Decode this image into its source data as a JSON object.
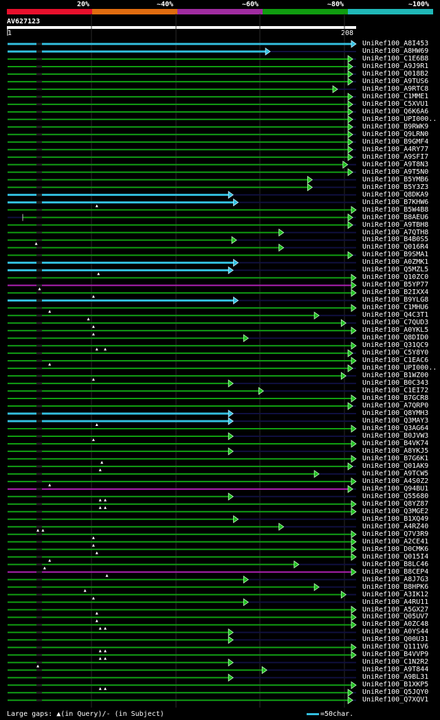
{
  "legend": {
    "labels": [
      "20%",
      "~40%",
      "~60%",
      "~80%",
      "~100%"
    ],
    "colors": [
      "#e8102c",
      "#e06c10",
      "#a02ca0",
      "#109c10",
      "#20b8b8"
    ]
  },
  "query": {
    "id": "AV627123",
    "start_label": "1",
    "end_label": "208",
    "length": 208
  },
  "identity_colors": {
    "cyan": "#33c0e0",
    "green": "#10a010",
    "magenta": "#b020b0",
    "dark": "#101040"
  },
  "hits": [
    {
      "name": "UniRef100_A8I453",
      "color": "cyan",
      "start": 1,
      "end": 208,
      "gaps": []
    },
    {
      "name": "UniRef100_A8HW69",
      "color": "cyan",
      "start": 1,
      "end": 157,
      "gaps": []
    },
    {
      "name": "UniRef100_C1E6B8",
      "color": "green",
      "start": 1,
      "end": 206,
      "gaps": []
    },
    {
      "name": "UniRef100_A9J9R1",
      "color": "green",
      "start": 1,
      "end": 206,
      "gaps": []
    },
    {
      "name": "UniRef100_Q018B2",
      "color": "green",
      "start": 1,
      "end": 206,
      "gaps": []
    },
    {
      "name": "UniRef100_A9TUS6",
      "color": "green",
      "start": 1,
      "end": 206,
      "gaps": []
    },
    {
      "name": "UniRef100_A9RTC8",
      "color": "green",
      "start": 1,
      "end": 197,
      "gaps": []
    },
    {
      "name": "UniRef100_C1MME1",
      "color": "green",
      "start": 1,
      "end": 206,
      "gaps": []
    },
    {
      "name": "UniRef100_C5XVU1",
      "color": "green",
      "start": 1,
      "end": 206,
      "gaps": []
    },
    {
      "name": "UniRef100_Q6K6A6",
      "color": "green",
      "start": 1,
      "end": 206,
      "gaps": []
    },
    {
      "name": "UniRef100_UPI000..",
      "color": "green",
      "start": 1,
      "end": 206,
      "gaps": []
    },
    {
      "name": "UniRef100_B9RWK9",
      "color": "green",
      "start": 1,
      "end": 206,
      "gaps": []
    },
    {
      "name": "UniRef100_Q9LRN0",
      "color": "green",
      "start": 1,
      "end": 206,
      "gaps": []
    },
    {
      "name": "UniRef100_B9GMF4",
      "color": "green",
      "start": 1,
      "end": 206,
      "gaps": []
    },
    {
      "name": "UniRef100_A4RY77",
      "color": "green",
      "start": 1,
      "end": 206,
      "gaps": []
    },
    {
      "name": "UniRef100_A9SFI7",
      "color": "green",
      "start": 1,
      "end": 206,
      "gaps": []
    },
    {
      "name": "UniRef100_A9T8N3",
      "color": "green",
      "start": 1,
      "end": 203,
      "gaps": []
    },
    {
      "name": "UniRef100_A9T5N0",
      "color": "green",
      "start": 1,
      "end": 206,
      "gaps": []
    },
    {
      "name": "UniRef100_B5YMB6",
      "color": "green",
      "start": 1,
      "end": 182,
      "gaps": []
    },
    {
      "name": "UniRef100_B5Y3Z3",
      "color": "green",
      "start": 1,
      "end": 182,
      "gaps": []
    },
    {
      "name": "UniRef100_Q8DKA9",
      "color": "cyan",
      "start": 1,
      "end": 135,
      "gaps": []
    },
    {
      "name": "UniRef100_B7KHW6",
      "color": "cyan",
      "start": 1,
      "end": 138,
      "gaps": []
    },
    {
      "name": "UniRef100_B5W4B8",
      "color": "green",
      "start": 1,
      "end": 208,
      "gaps": [
        54
      ]
    },
    {
      "name": "UniRef100_B8AEU6",
      "color": "green",
      "start": 10,
      "end": 206,
      "gaps": []
    },
    {
      "name": "UniRef100_A9TBH8",
      "color": "green",
      "start": 1,
      "end": 206,
      "gaps": []
    },
    {
      "name": "UniRef100_A7QTH8",
      "color": "green",
      "start": 1,
      "end": 165,
      "gaps": []
    },
    {
      "name": "UniRef100_B4B0S5",
      "color": "green",
      "start": 1,
      "end": 137,
      "gaps": []
    },
    {
      "name": "UniRef100_Q016R4",
      "color": "green",
      "start": 1,
      "end": 165,
      "gaps": [
        18
      ]
    },
    {
      "name": "UniRef100_B9SMA1",
      "color": "green",
      "start": 1,
      "end": 206,
      "gaps": []
    },
    {
      "name": "UniRef100_A0ZMK1",
      "color": "cyan",
      "start": 1,
      "end": 138,
      "gaps": []
    },
    {
      "name": "UniRef100_Q5MZL5",
      "color": "cyan",
      "start": 1,
      "end": 135,
      "gaps": []
    },
    {
      "name": "UniRef100_Q10ZC0",
      "color": "green",
      "start": 1,
      "end": 208,
      "gaps": [
        55
      ]
    },
    {
      "name": "UniRef100_B5YP77",
      "color": "magenta",
      "start": 1,
      "end": 208,
      "gaps": []
    },
    {
      "name": "UniRef100_B2IXX4",
      "color": "green",
      "start": 1,
      "end": 208,
      "gaps": [
        20
      ]
    },
    {
      "name": "UniRef100_B9YLG8",
      "color": "cyan",
      "start": 1,
      "end": 138,
      "gaps": [
        52
      ]
    },
    {
      "name": "UniRef100_C1MHU6",
      "color": "green",
      "start": 1,
      "end": 208,
      "gaps": []
    },
    {
      "name": "UniRef100_Q4C3T1",
      "color": "green",
      "start": 1,
      "end": 186,
      "gaps": [
        26
      ]
    },
    {
      "name": "UniRef100_C7QUD3",
      "color": "green",
      "start": 1,
      "end": 202,
      "gaps": [
        49
      ]
    },
    {
      "name": "UniRef100_A0YKL5",
      "color": "green",
      "start": 1,
      "end": 208,
      "gaps": [
        52
      ]
    },
    {
      "name": "UniRef100_Q8DID0",
      "color": "green",
      "start": 1,
      "end": 144,
      "gaps": [
        52
      ]
    },
    {
      "name": "UniRef100_Q31QC9",
      "color": "green",
      "start": 1,
      "end": 208,
      "gaps": []
    },
    {
      "name": "UniRef100_C5Y8Y0",
      "color": "green",
      "start": 1,
      "end": 206,
      "gaps": [
        54,
        59
      ]
    },
    {
      "name": "UniRef100_C1EAC6",
      "color": "green",
      "start": 1,
      "end": 208,
      "gaps": []
    },
    {
      "name": "UniRef100_UPI000..",
      "color": "green",
      "start": 1,
      "end": 206,
      "gaps": [
        26
      ]
    },
    {
      "name": "UniRef100_B1WZ00",
      "color": "green",
      "start": 1,
      "end": 202,
      "gaps": []
    },
    {
      "name": "UniRef100_B0C343",
      "color": "green",
      "start": 1,
      "end": 135,
      "gaps": [
        52
      ]
    },
    {
      "name": "UniRef100_C1EI72",
      "color": "green",
      "start": 1,
      "end": 153,
      "gaps": []
    },
    {
      "name": "UniRef100_B7GCR8",
      "color": "green",
      "start": 1,
      "end": 208,
      "gaps": []
    },
    {
      "name": "UniRef100_A7QRP0",
      "color": "green",
      "start": 1,
      "end": 206,
      "gaps": []
    },
    {
      "name": "UniRef100_Q8YMH3",
      "color": "cyan",
      "start": 1,
      "end": 135,
      "gaps": []
    },
    {
      "name": "UniRef100_Q3MAY3",
      "color": "cyan",
      "start": 1,
      "end": 135,
      "gaps": []
    },
    {
      "name": "UniRef100_Q3AG64",
      "color": "green",
      "start": 1,
      "end": 208,
      "gaps": [
        54
      ]
    },
    {
      "name": "UniRef100_B0JVW3",
      "color": "green",
      "start": 1,
      "end": 135,
      "gaps": []
    },
    {
      "name": "UniRef100_B4VK74",
      "color": "green",
      "start": 1,
      "end": 208,
      "gaps": [
        52
      ]
    },
    {
      "name": "UniRef100_A8YKJ5",
      "color": "green",
      "start": 1,
      "end": 135,
      "gaps": []
    },
    {
      "name": "UniRef100_B7G6K1",
      "color": "green",
      "start": 1,
      "end": 208,
      "gaps": []
    },
    {
      "name": "UniRef100_Q01AK9",
      "color": "green",
      "start": 1,
      "end": 206,
      "gaps": [
        57
      ]
    },
    {
      "name": "UniRef100_A9TCW5",
      "color": "green",
      "start": 1,
      "end": 186,
      "gaps": [
        56
      ]
    },
    {
      "name": "UniRef100_A4S0Z2",
      "color": "green",
      "start": 1,
      "end": 208,
      "gaps": []
    },
    {
      "name": "UniRef100_Q94BU1",
      "color": "magenta",
      "start": 1,
      "end": 206,
      "gaps": [
        26
      ]
    },
    {
      "name": "UniRef100_Q55680",
      "color": "green",
      "start": 1,
      "end": 135,
      "gaps": []
    },
    {
      "name": "UniRef100_Q8YZ87",
      "color": "green",
      "start": 1,
      "end": 208,
      "gaps": [
        56,
        59
      ]
    },
    {
      "name": "UniRef100_Q3MGE2",
      "color": "green",
      "start": 1,
      "end": 208,
      "gaps": [
        56,
        59
      ]
    },
    {
      "name": "UniRef100_B1XQ49",
      "color": "green",
      "start": 1,
      "end": 138,
      "gaps": []
    },
    {
      "name": "UniRef100_A4RZ40",
      "color": "green",
      "start": 1,
      "end": 165,
      "gaps": []
    },
    {
      "name": "UniRef100_Q7V3R9",
      "color": "green",
      "start": 1,
      "end": 208,
      "gaps": [
        19,
        22
      ]
    },
    {
      "name": "UniRef100_A2CE41",
      "color": "green",
      "start": 1,
      "end": 208,
      "gaps": [
        52
      ]
    },
    {
      "name": "UniRef100_D0CMK6",
      "color": "green",
      "start": 1,
      "end": 208,
      "gaps": [
        52
      ]
    },
    {
      "name": "UniRef100_Q015I4",
      "color": "green",
      "start": 1,
      "end": 208,
      "gaps": [
        54
      ]
    },
    {
      "name": "UniRef100_B8LC46",
      "color": "green",
      "start": 1,
      "end": 174,
      "gaps": [
        26
      ]
    },
    {
      "name": "UniRef100_B8CEP4",
      "color": "magenta",
      "start": 1,
      "end": 208,
      "gaps": [
        23
      ]
    },
    {
      "name": "UniRef100_A8J7G3",
      "color": "green",
      "start": 1,
      "end": 144,
      "gaps": [
        60
      ]
    },
    {
      "name": "UniRef100_B8HPK6",
      "color": "green",
      "start": 1,
      "end": 186,
      "gaps": []
    },
    {
      "name": "UniRef100_A3IK12",
      "color": "green",
      "start": 1,
      "end": 202,
      "gaps": [
        47
      ]
    },
    {
      "name": "UniRef100_A4RU11",
      "color": "green",
      "start": 1,
      "end": 144,
      "gaps": [
        52
      ]
    },
    {
      "name": "UniRef100_A5GX27",
      "color": "green",
      "start": 1,
      "end": 208,
      "gaps": []
    },
    {
      "name": "UniRef100_Q05UV7",
      "color": "green",
      "start": 1,
      "end": 208,
      "gaps": [
        54
      ]
    },
    {
      "name": "UniRef100_A0ZC48",
      "color": "green",
      "start": 1,
      "end": 208,
      "gaps": [
        54
      ]
    },
    {
      "name": "UniRef100_A0YS44",
      "color": "green",
      "start": 1,
      "end": 135,
      "gaps": [
        56,
        59
      ]
    },
    {
      "name": "UniRef100_Q00U31",
      "color": "green",
      "start": 1,
      "end": 135,
      "gaps": []
    },
    {
      "name": "UniRef100_Q111V6",
      "color": "green",
      "start": 1,
      "end": 208,
      "gaps": []
    },
    {
      "name": "UniRef100_B4VVP9",
      "color": "green",
      "start": 1,
      "end": 208,
      "gaps": [
        56,
        59
      ]
    },
    {
      "name": "UniRef100_C1N2R2",
      "color": "green",
      "start": 1,
      "end": 135,
      "gaps": [
        56,
        59
      ]
    },
    {
      "name": "UniRef100_A9T844",
      "color": "green",
      "start": 1,
      "end": 155,
      "gaps": [
        19
      ]
    },
    {
      "name": "UniRef100_A9BL31",
      "color": "green",
      "start": 1,
      "end": 135,
      "gaps": []
    },
    {
      "name": "UniRef100_B1XKP5",
      "color": "green",
      "start": 1,
      "end": 208,
      "gaps": []
    },
    {
      "name": "UniRef100_Q5JQY0",
      "color": "green",
      "start": 1,
      "end": 206,
      "gaps": [
        56,
        59
      ]
    },
    {
      "name": "UniRef100_Q7XQV1",
      "color": "green",
      "start": 1,
      "end": 206,
      "gaps": []
    }
  ],
  "footer": {
    "gaps_text": "Large gaps: ▲(in Query)/- (in Subject)",
    "scale_text": "=50char."
  }
}
